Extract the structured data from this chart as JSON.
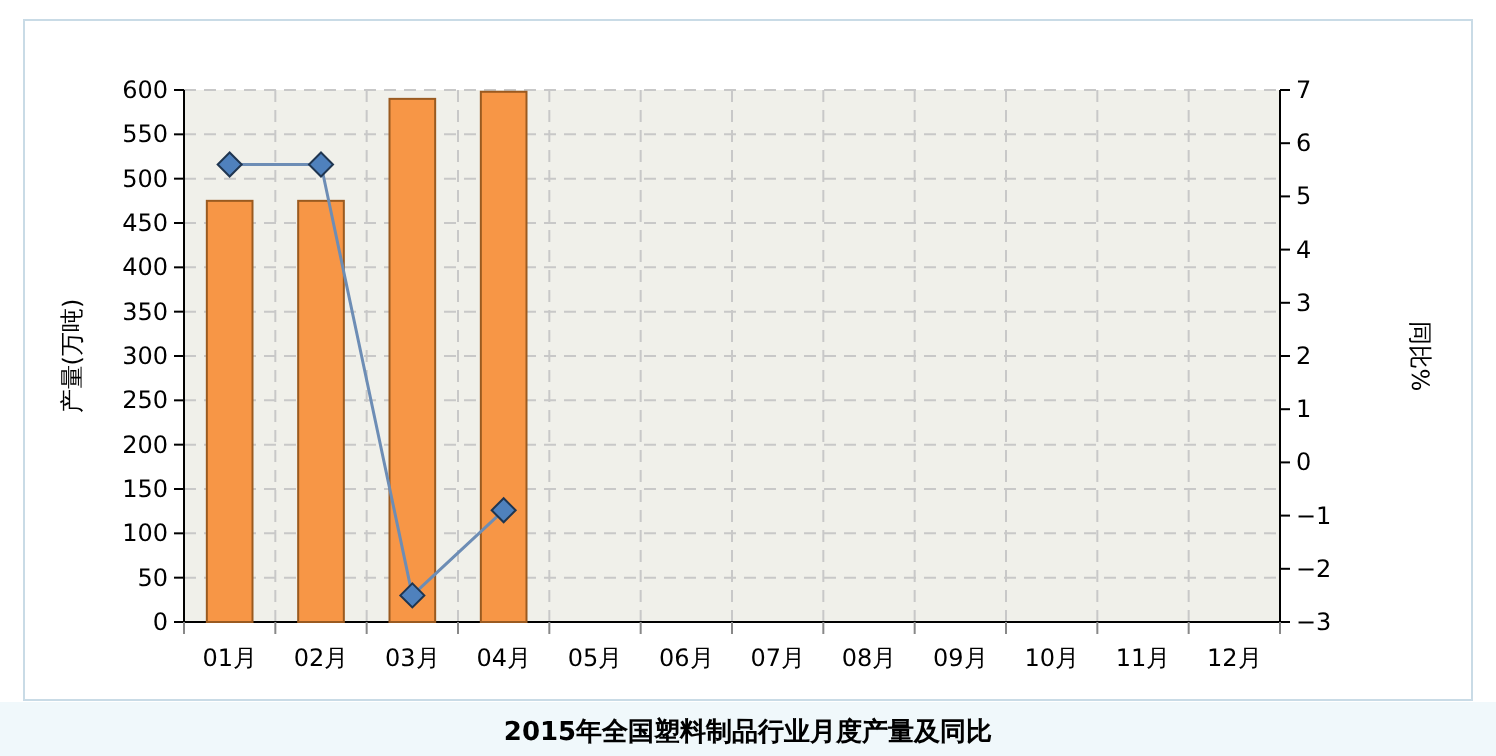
{
  "chart_data": {
    "type": "bar",
    "title": "2015年全国塑料制品行业月度产量及同比",
    "ylabel": "产量(万吨)",
    "y2label": "同比%",
    "categories": [
      "01月",
      "02月",
      "03月",
      "04月",
      "05月",
      "06月",
      "07月",
      "08月",
      "09月",
      "10月",
      "11月",
      "12月"
    ],
    "series": [
      {
        "color": "#f79646",
        "values": [
          475,
          475,
          590,
          598,
          null,
          null,
          null,
          null,
          null,
          null,
          null,
          null
        ]
      },
      {
        "type": "line",
        "axis": "y2",
        "color": "#6d8db5",
        "marker": "diamond",
        "values": [
          5.6,
          5.6,
          -2.5,
          -0.9,
          null,
          null,
          null,
          null,
          null,
          null,
          null,
          null
        ]
      }
    ],
    "ylim": [
      0,
      600
    ],
    "yticks": [
      0,
      50,
      100,
      150,
      200,
      250,
      300,
      350,
      400,
      450,
      500,
      550,
      600
    ],
    "y2lim": [
      -3,
      7
    ],
    "y2ticks": [
      -3,
      -2,
      -1,
      0,
      1,
      2,
      3,
      4,
      5,
      6,
      7
    ],
    "grid": true
  }
}
